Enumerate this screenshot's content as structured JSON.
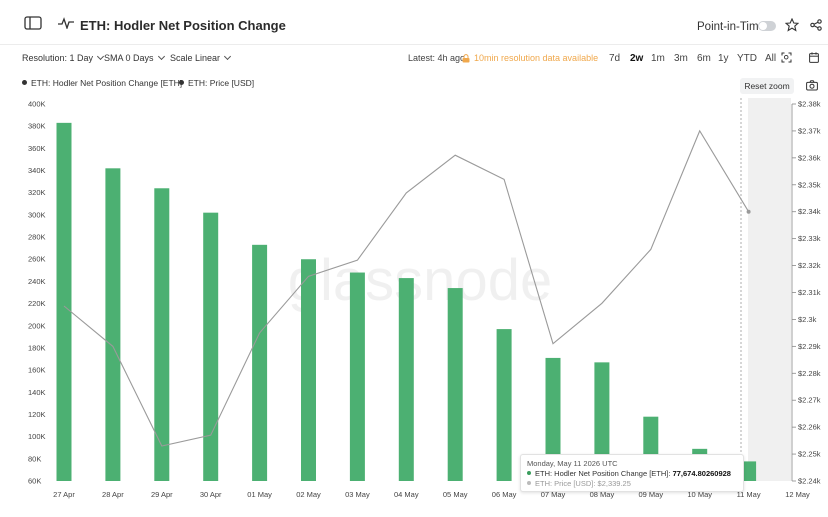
{
  "header": {
    "title": "ETH: Hodler Net Position Change",
    "point_in_time_label": "Point-in-Time"
  },
  "controls": {
    "resolution": "Resolution: 1 Day",
    "sma": "SMA 0 Days",
    "scale": "Scale Linear",
    "latest": "Latest: 4h ago",
    "resolution_note": "10min resolution data available",
    "ranges": [
      "7d",
      "2w",
      "1m",
      "3m",
      "6m",
      "1y",
      "YTD",
      "All"
    ],
    "active_range": "2w",
    "reset_zoom": "Reset zoom"
  },
  "legend": {
    "item1": "ETH: Hodler Net Position Change [ETH]",
    "item2": "ETH: Price [USD]"
  },
  "watermark": "glassnode",
  "tooltip": {
    "date": "Monday, May 11 2026 UTC",
    "row1_label": "ETH: Hodler Net Position Change [ETH]:",
    "row1_value": "77,674.80260928",
    "row2_label": "ETH: Price [USD]:",
    "row2_value": "$2,339.25",
    "color1": "#3a9d5d",
    "color2": "#bbbbbb"
  },
  "chart_data": {
    "type": "bar",
    "categories": [
      "27 Apr",
      "28 Apr",
      "29 Apr",
      "30 Apr",
      "01 May",
      "02 May",
      "03 May",
      "04 May",
      "05 May",
      "06 May",
      "07 May",
      "08 May",
      "09 May",
      "10 May",
      "11 May",
      "12 May"
    ],
    "series": [
      {
        "name": "ETH: Hodler Net Position Change [ETH]",
        "type": "bar",
        "axis": "left",
        "color": "#4cb072",
        "values": [
          383000,
          342000,
          324000,
          302000,
          273000,
          260000,
          248000,
          243000,
          234000,
          197000,
          171000,
          167000,
          118000,
          89000,
          77674.8,
          null
        ]
      },
      {
        "name": "ETH: Price [USD]",
        "type": "line",
        "axis": "right",
        "color": "#9a9a9a",
        "values": [
          2305,
          2290,
          2253,
          2257,
          2295,
          2316,
          2322,
          2347,
          2361,
          2352,
          2291,
          2306,
          2326,
          2370,
          2340,
          null
        ]
      }
    ],
    "y_left": {
      "ticks": [
        "400K",
        "380K",
        "360K",
        "340K",
        "320K",
        "300K",
        "280K",
        "260K",
        "240K",
        "220K",
        "200K",
        "180K",
        "160K",
        "140K",
        "120K",
        "100K",
        "80K",
        "60K"
      ],
      "min": 60000,
      "max": 400000
    },
    "y_right": {
      "ticks": [
        "$2.38k",
        "$2.37k",
        "$2.36k",
        "$2.35k",
        "$2.34k",
        "$2.33k",
        "$2.32k",
        "$2.31k",
        "$2.3k",
        "$2.29k",
        "$2.28k",
        "$2.27k",
        "$2.26k",
        "$2.25k",
        "$2.24k"
      ],
      "min": 2240,
      "max": 2380
    },
    "shaded_region": "12 May (current day)",
    "grid": false,
    "legend_placement": "top-left"
  }
}
